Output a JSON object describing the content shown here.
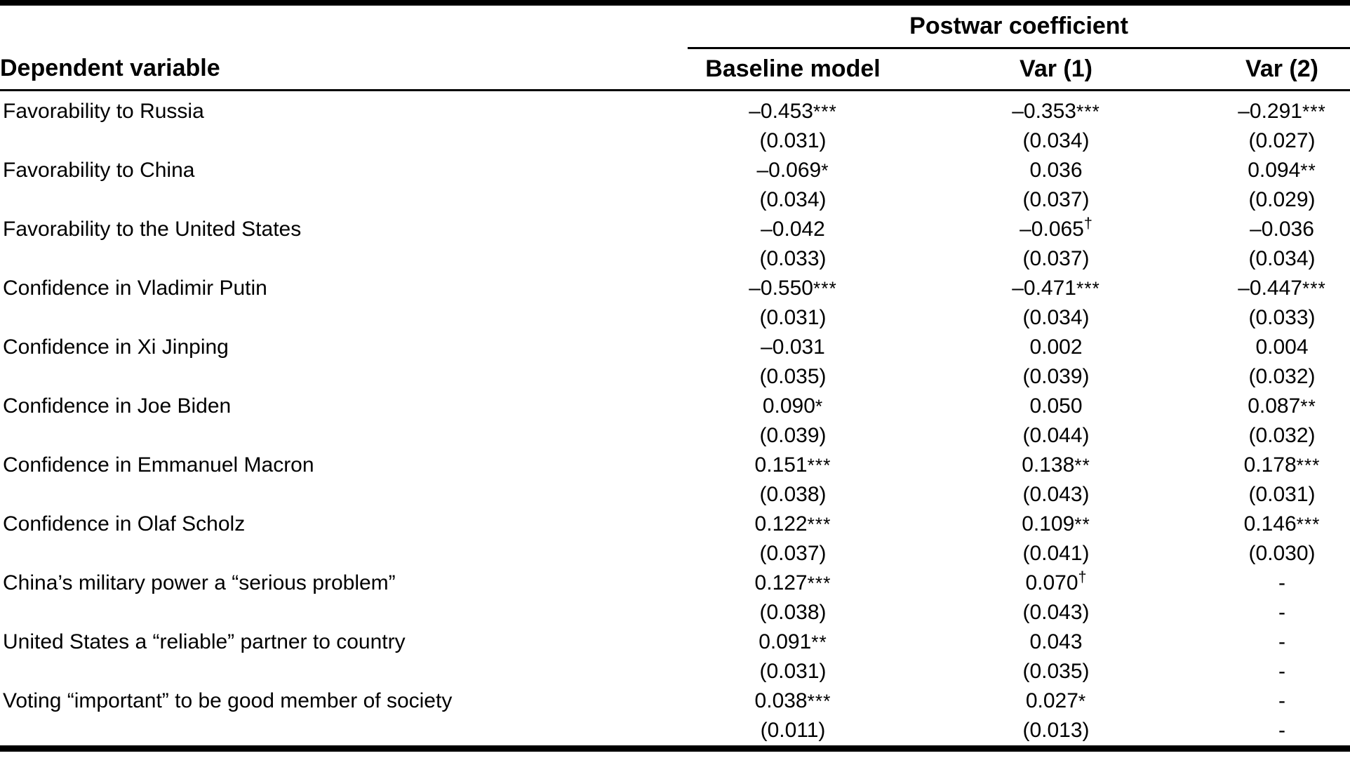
{
  "table": {
    "group_header": "Postwar coefficient",
    "columns": {
      "dependent_variable": "Dependent variable",
      "baseline_model": "Baseline model",
      "var1": "Var (1)",
      "var2": "Var (2)"
    },
    "rows": [
      {
        "label": "Favorability to Russia",
        "cells": [
          {
            "coef": "–0.453",
            "mark": "***",
            "se": "(0.031)"
          },
          {
            "coef": "–0.353",
            "mark": "***",
            "se": "(0.034)"
          },
          {
            "coef": "–0.291",
            "mark": "***",
            "se": "(0.027)"
          }
        ]
      },
      {
        "label": "Favorability to China",
        "cells": [
          {
            "coef": "–0.069",
            "mark": "*",
            "se": "(0.034)"
          },
          {
            "coef": "0.036",
            "mark": "",
            "se": "(0.037)"
          },
          {
            "coef": "0.094",
            "mark": "**",
            "se": "(0.029)"
          }
        ]
      },
      {
        "label": "Favorability to the United States",
        "cells": [
          {
            "coef": "–0.042",
            "mark": "",
            "se": "(0.033)"
          },
          {
            "coef": "–0.065",
            "mark": "†",
            "se": "(0.037)"
          },
          {
            "coef": "–0.036",
            "mark": "",
            "se": "(0.034)"
          }
        ]
      },
      {
        "label": "Confidence in Vladimir Putin",
        "cells": [
          {
            "coef": "–0.550",
            "mark": "***",
            "se": "(0.031)"
          },
          {
            "coef": "–0.471",
            "mark": "***",
            "se": "(0.034)"
          },
          {
            "coef": "–0.447",
            "mark": "***",
            "se": "(0.033)"
          }
        ]
      },
      {
        "label": "Confidence in Xi Jinping",
        "cells": [
          {
            "coef": "–0.031",
            "mark": "",
            "se": "(0.035)"
          },
          {
            "coef": "0.002",
            "mark": "",
            "se": "(0.039)"
          },
          {
            "coef": "0.004",
            "mark": "",
            "se": "(0.032)"
          }
        ]
      },
      {
        "label": "Confidence in Joe Biden",
        "cells": [
          {
            "coef": "0.090",
            "mark": "*",
            "se": "(0.039)"
          },
          {
            "coef": "0.050",
            "mark": "",
            "se": "(0.044)"
          },
          {
            "coef": "0.087",
            "mark": "**",
            "se": "(0.032)"
          }
        ]
      },
      {
        "label": "Confidence in Emmanuel Macron",
        "cells": [
          {
            "coef": "0.151",
            "mark": "***",
            "se": "(0.038)"
          },
          {
            "coef": "0.138",
            "mark": "**",
            "se": "(0.043)"
          },
          {
            "coef": "0.178",
            "mark": "***",
            "se": "(0.031)"
          }
        ]
      },
      {
        "label": "Confidence in Olaf Scholz",
        "cells": [
          {
            "coef": "0.122",
            "mark": "***",
            "se": "(0.037)"
          },
          {
            "coef": "0.109",
            "mark": "**",
            "se": "(0.041)"
          },
          {
            "coef": "0.146",
            "mark": "***",
            "se": "(0.030)"
          }
        ]
      },
      {
        "label": "China’s military power a “serious problem”",
        "cells": [
          {
            "coef": "0.127",
            "mark": "***",
            "se": "(0.038)"
          },
          {
            "coef": "0.070",
            "mark": "†",
            "se": "(0.043)"
          },
          {
            "coef": "-",
            "mark": "",
            "se": "-"
          }
        ]
      },
      {
        "label": "United States a “reliable” partner to country",
        "cells": [
          {
            "coef": "0.091",
            "mark": "**",
            "se": "(0.031)"
          },
          {
            "coef": "0.043",
            "mark": "",
            "se": "(0.035)"
          },
          {
            "coef": "-",
            "mark": "",
            "se": "-"
          }
        ]
      },
      {
        "label": "Voting “important” to be good member of society",
        "cells": [
          {
            "coef": "0.038",
            "mark": "***",
            "se": "(0.011)"
          },
          {
            "coef": "0.027",
            "mark": "*",
            "se": "(0.013)"
          },
          {
            "coef": "-",
            "mark": "",
            "se": "-"
          }
        ]
      }
    ]
  }
}
